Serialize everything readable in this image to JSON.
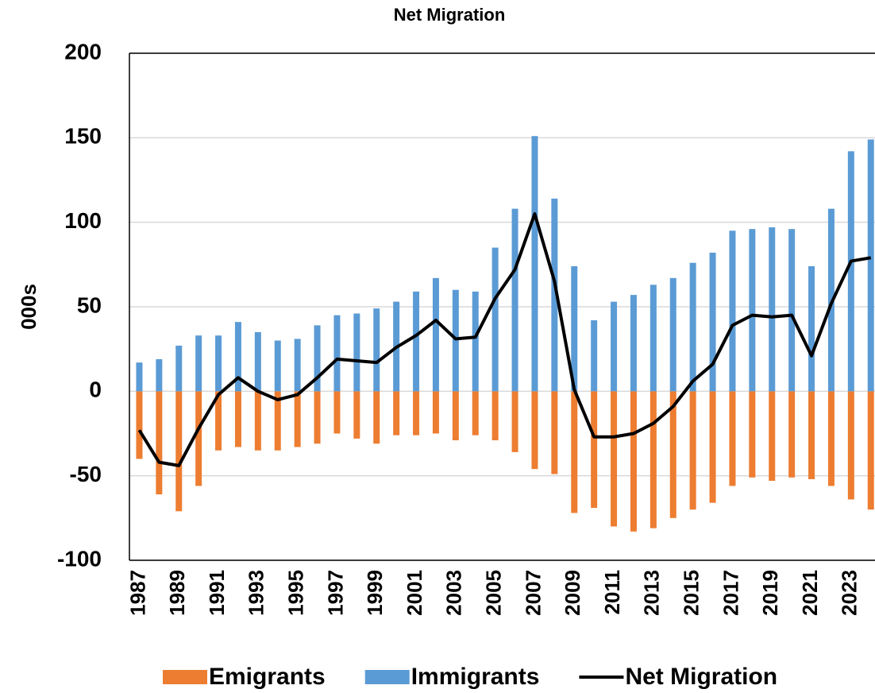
{
  "chart_data": {
    "type": "bar",
    "title": "Net Migration",
    "y_label": "000s",
    "categories": [
      "1987",
      null,
      "1989",
      null,
      "1991",
      null,
      "1993",
      null,
      "1995",
      null,
      "1997",
      null,
      "1999",
      null,
      "2001",
      null,
      "2003",
      null,
      "2005",
      null,
      "2007",
      null,
      "2009",
      null,
      "2011",
      null,
      "2013",
      null,
      "2015",
      null,
      "2017",
      null,
      "2019",
      null,
      "2021",
      null,
      "2023",
      null
    ],
    "series": [
      {
        "name": "Emigrants",
        "color": "#ed7d31",
        "type": "bar",
        "values": [
          -40,
          -61,
          -71,
          -56,
          -35,
          -33,
          -35,
          -35,
          -33,
          -31,
          -25,
          -28,
          -31,
          -26,
          -26,
          -25,
          -29,
          -26,
          -29,
          -36,
          -46,
          -49,
          -72,
          -69,
          -80,
          -83,
          -81,
          -75,
          -70,
          -66,
          -56,
          -51,
          -53,
          -51,
          -52,
          -56,
          -64,
          -70
        ]
      },
      {
        "name": "Immigrants",
        "color": "#5b9bd5",
        "type": "bar",
        "values": [
          17,
          19,
          27,
          33,
          33,
          41,
          35,
          30,
          31,
          39,
          45,
          46,
          49,
          53,
          59,
          67,
          60,
          59,
          85,
          108,
          151,
          114,
          74,
          42,
          53,
          57,
          63,
          67,
          76,
          82,
          95,
          96,
          97,
          96,
          74,
          108,
          142,
          149
        ]
      },
      {
        "name": "Net Migration",
        "color": "#000000",
        "type": "line",
        "values": [
          -23,
          -42,
          -44,
          -22,
          -2,
          8,
          0,
          -5,
          -2,
          8,
          19,
          18,
          17,
          26,
          33,
          42,
          31,
          32,
          55,
          72,
          105,
          65,
          1,
          -27,
          -27,
          -25,
          -19,
          -9,
          6,
          16,
          39,
          45,
          44,
          45,
          21,
          52,
          77,
          79
        ]
      }
    ],
    "ylim": [
      -100,
      200
    ],
    "yticks": [
      -100,
      -50,
      0,
      50,
      100,
      150,
      200
    ],
    "grid": true,
    "legend": "bottom"
  }
}
